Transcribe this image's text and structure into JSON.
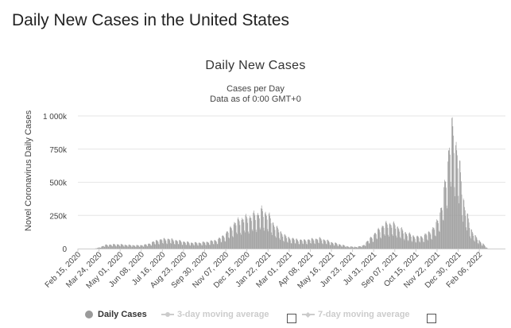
{
  "page": {
    "heading": "Daily New Cases in the United States"
  },
  "chart_data": {
    "type": "bar",
    "title": "Daily New Cases",
    "subtitle_line1": "Cases per Day",
    "subtitle_line2": "Data as of 0:00 GMT+0",
    "ylabel": "Novel Coronavirus Daily Cases",
    "xlabel": "",
    "ylim": [
      0,
      1000000
    ],
    "grid": true,
    "y_ticks": [
      {
        "value": 0,
        "label": "0"
      },
      {
        "value": 250000,
        "label": "250k"
      },
      {
        "value": 500000,
        "label": "500k"
      },
      {
        "value": 750000,
        "label": "750k"
      },
      {
        "value": 1000000,
        "label": "1 000k"
      }
    ],
    "x_tick_labels": [
      "Feb 15, 2020",
      "Mar 24, 2020",
      "May 01, 2020",
      "Jun 08, 2020",
      "Jul 16, 2020",
      "Aug 23, 2020",
      "Sep 30, 2020",
      "Nov 07, 2020",
      "Dec 15, 2020",
      "Jan 22, 2021",
      "Mar 01, 2021",
      "Apr 08, 2021",
      "May 16, 2021",
      "Jun 23, 2021",
      "Jul 31, 2021",
      "Sep 07, 2021",
      "Oct 15, 2021",
      "Nov 22, 2021",
      "Dec 30, 2021",
      "Feb 06, 2022"
    ],
    "start_date": "Feb 15, 2020",
    "days_per_tick": 38,
    "total_days": 769,
    "series": [
      {
        "name": "Daily Cases",
        "color": "#9a9a9a",
        "visible": true,
        "trend_anchors": [
          [
            0,
            0
          ],
          [
            30,
            0
          ],
          [
            38,
            8000
          ],
          [
            50,
            26000
          ],
          [
            70,
            30000
          ],
          [
            90,
            25000
          ],
          [
            110,
            22000
          ],
          [
            125,
            30000
          ],
          [
            140,
            55000
          ],
          [
            155,
            67000
          ],
          [
            165,
            66000
          ],
          [
            180,
            55000
          ],
          [
            200,
            42000
          ],
          [
            215,
            40000
          ],
          [
            230,
            45000
          ],
          [
            250,
            60000
          ],
          [
            265,
            100000
          ],
          [
            280,
            170000
          ],
          [
            290,
            200000
          ],
          [
            305,
            215000
          ],
          [
            320,
            235000
          ],
          [
            330,
            260000
          ],
          [
            340,
            245000
          ],
          [
            350,
            180000
          ],
          [
            360,
            130000
          ],
          [
            375,
            80000
          ],
          [
            390,
            65000
          ],
          [
            405,
            58000
          ],
          [
            420,
            65000
          ],
          [
            435,
            70000
          ],
          [
            445,
            60000
          ],
          [
            455,
            45000
          ],
          [
            470,
            30000
          ],
          [
            485,
            15000
          ],
          [
            500,
            12000
          ],
          [
            512,
            20000
          ],
          [
            520,
            50000
          ],
          [
            535,
            110000
          ],
          [
            550,
            165000
          ],
          [
            560,
            175000
          ],
          [
            572,
            160000
          ],
          [
            585,
            120000
          ],
          [
            598,
            95000
          ],
          [
            610,
            80000
          ],
          [
            620,
            85000
          ],
          [
            630,
            110000
          ],
          [
            642,
            150000
          ],
          [
            655,
            300000
          ],
          [
            662,
            520000
          ],
          [
            668,
            720000
          ],
          [
            672,
            830000
          ],
          [
            676,
            800000
          ],
          [
            682,
            680000
          ],
          [
            688,
            500000
          ],
          [
            695,
            300000
          ],
          [
            705,
            150000
          ],
          [
            715,
            80000
          ],
          [
            725,
            45000
          ],
          [
            737,
            0
          ]
        ]
      },
      {
        "name": "3-day moving average",
        "color": "#cccccc",
        "visible": false
      },
      {
        "name": "7-day moving average",
        "color": "#cccccc",
        "visible": false
      }
    ]
  },
  "legend": {
    "item1": "Daily Cases",
    "item2": "3-day moving average",
    "item3": "7-day moving average"
  }
}
